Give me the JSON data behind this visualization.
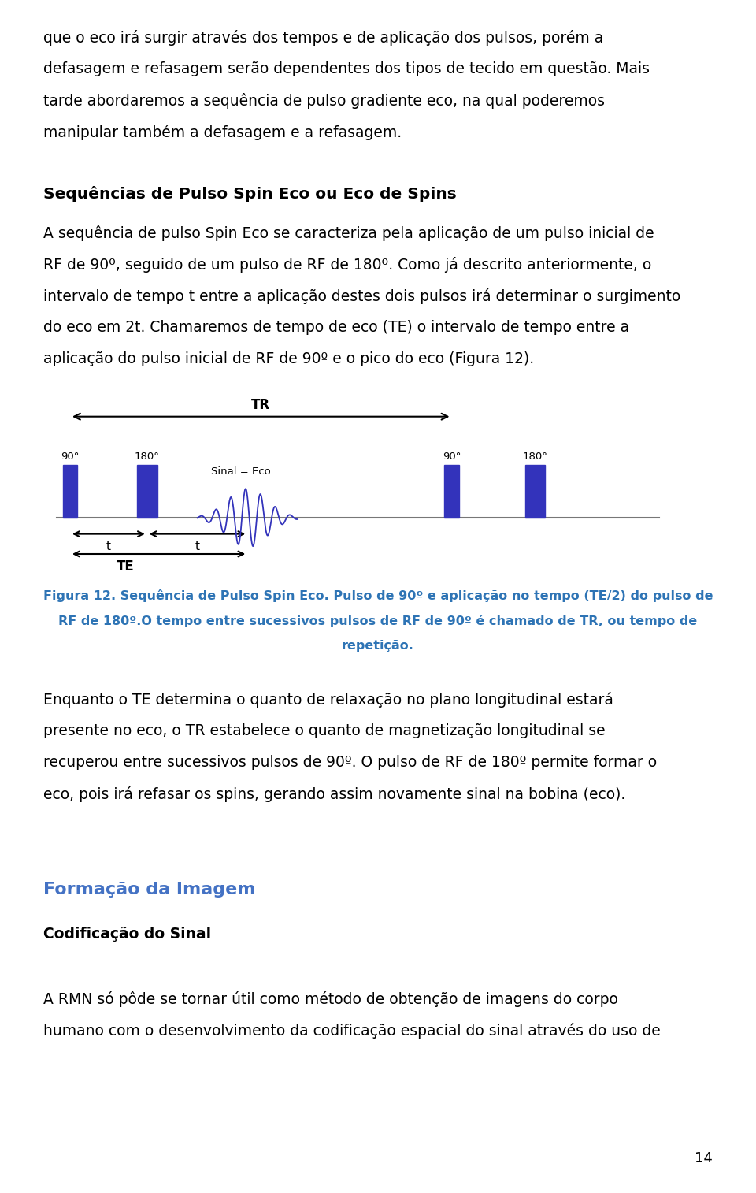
{
  "background_color": "#ffffff",
  "page_width": 9.6,
  "page_height": 15.14,
  "text_color": "#000000",
  "blue_color": "#3A6FA8",
  "caption_color": "#2E74B5",
  "pulse_color": "#3333BB",
  "body_fontsize": 13.5,
  "heading_fontsize": 14.5,
  "caption_fontsize": 11.5,
  "page_num_fontsize": 13,
  "paragraph1_lines": [
    "que o eco irá surgir através dos tempos e de aplicação dos pulsos, porém a",
    "defasagem e refasagem serão dependentes dos tipos de tecido em questão. Mais",
    "tarde abordaremos a sequência de pulso gradiente eco, na qual poderemos",
    "manipular também a defasagem e a refasagem."
  ],
  "section_heading": "Sequências de Pulso Spin Eco ou Eco de Spins",
  "paragraph2_lines": [
    "A sequência de pulso Spin Eco se caracteriza pela aplicação de um pulso inicial de",
    "RF de 90º, seguido de um pulso de RF de 180º. Como já descrito anteriormente, o",
    "intervalo de tempo t entre a aplicação destes dois pulsos irá determinar o surgimento",
    "do eco em 2t. Chamaremos de tempo de eco (TE) o intervalo de tempo entre a",
    "aplicação do pulso inicial de RF de 90º e o pico do eco (Figura 12)."
  ],
  "caption_lines": [
    "Figura 12. Sequência de Pulso Spin Eco. Pulso de 90º e aplicação no tempo (TE/2) do pulso de",
    "RF de 180º.O tempo entre sucessivos pulsos de RF de 90º é chamado de TR, ou tempo de",
    "repetição."
  ],
  "paragraph3_lines": [
    "Enquanto o TE determina o quanto de relaxação no plano longitudinal estará",
    "presente no eco, o TR estabelece o quanto de magnetização longitudinal se",
    "recuperou entre sucessivos pulsos de 90º. O pulso de RF de 180º permite formar o",
    "eco, pois irá refasar os spins, gerando assim novamente sinal na bobina (eco)."
  ],
  "section2_heading": "Formação da Imagem",
  "subsection_heading": "Codificação do Sinal",
  "paragraph4_lines": [
    "A RMN só pôde se tornar útil como método de obtenção de imagens do corpo",
    "humano com o desenvolvimento da codificação espacial do sinal através do uso de"
  ],
  "page_number": "14"
}
